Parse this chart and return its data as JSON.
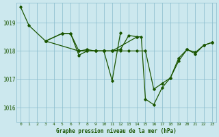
{
  "title": "Graphe pression niveau de la mer (hPa)",
  "background_color": "#cce8ee",
  "grid_color": "#88bbcc",
  "line_color": "#1a5500",
  "text_color": "#1a5500",
  "xlim": [
    -0.5,
    23.5
  ],
  "ylim": [
    1015.5,
    1019.7
  ],
  "yticks": [
    1016,
    1017,
    1018,
    1019
  ],
  "xticks": [
    0,
    1,
    2,
    3,
    4,
    5,
    6,
    7,
    8,
    9,
    10,
    11,
    12,
    13,
    14,
    15,
    16,
    17,
    18,
    19,
    20,
    21,
    22,
    23
  ],
  "series": [
    {
      "x": [
        0,
        1,
        3,
        7,
        10,
        11,
        14
      ],
      "y": [
        1019.55,
        1018.9,
        1018.35,
        1018.0,
        1018.0,
        1018.0,
        1018.5
      ]
    },
    {
      "x": [
        3,
        5,
        6,
        7,
        8,
        9,
        10,
        11,
        12
      ],
      "y": [
        1018.35,
        1018.62,
        1018.62,
        1018.0,
        1018.05,
        1018.0,
        1018.0,
        1016.95,
        1018.65
      ]
    },
    {
      "x": [
        3,
        5,
        6,
        7,
        8,
        9,
        10,
        11,
        12,
        13,
        14,
        14.5,
        15,
        16,
        17,
        18,
        19,
        20,
        21,
        22,
        23
      ],
      "y": [
        1018.35,
        1018.62,
        1018.62,
        1017.85,
        1018.0,
        1018.0,
        1018.0,
        1018.0,
        1018.05,
        1018.55,
        1018.5,
        1018.5,
        1016.3,
        1016.1,
        1016.7,
        1017.05,
        1017.75,
        1018.05,
        1017.95,
        1018.2,
        1018.3
      ]
    },
    {
      "x": [
        7,
        8,
        9,
        10,
        11,
        12,
        13,
        14,
        15,
        16,
        17,
        18,
        19,
        20,
        21,
        22,
        23
      ],
      "y": [
        1018.0,
        1018.0,
        1018.0,
        1018.0,
        1018.0,
        1018.0,
        1018.0,
        1018.0,
        1018.0,
        1016.65,
        1016.85,
        1017.05,
        1017.65,
        1018.05,
        1017.9,
        1018.2,
        1018.3
      ]
    }
  ]
}
